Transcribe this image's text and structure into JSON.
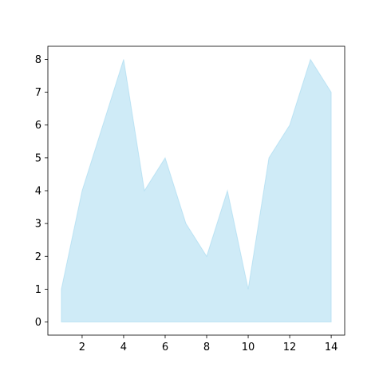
{
  "chart_data": {
    "type": "area",
    "title": "",
    "xlabel": "",
    "ylabel": "",
    "x": [
      1,
      2,
      3,
      4,
      5,
      6,
      7,
      8,
      9,
      10,
      11,
      12,
      13,
      14
    ],
    "series": [
      {
        "values": [
          1,
          4,
          6,
          8,
          4,
          5,
          3,
          2,
          4,
          1,
          5,
          6,
          8,
          7
        ]
      }
    ],
    "xlim": [
      0.35,
      14.65
    ],
    "ylim": [
      -0.4,
      8.4
    ],
    "xticks": [
      2,
      4,
      6,
      8,
      10,
      12,
      14
    ],
    "yticks": [
      0,
      1,
      2,
      3,
      4,
      5,
      6,
      7,
      8
    ],
    "fill_color": "#87ceeb",
    "fill_opacity": 0.4,
    "grid": false,
    "legend": "none"
  }
}
